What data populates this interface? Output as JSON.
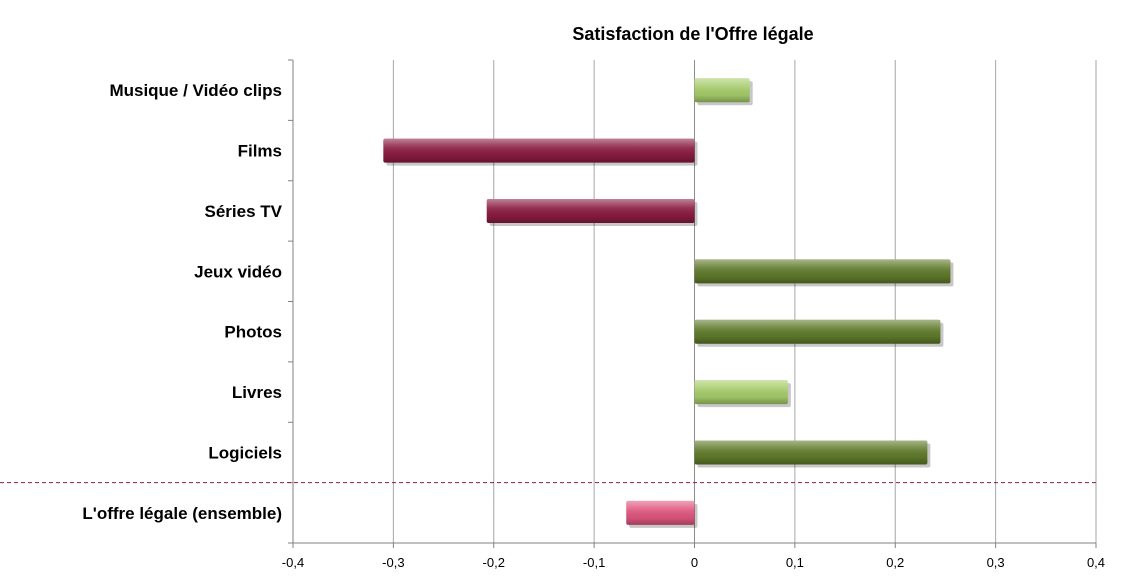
{
  "chart_data": {
    "type": "bar",
    "orientation": "horizontal",
    "title": "Satisfaction de l'Offre légale",
    "xlabel": "",
    "ylabel": "",
    "xlim": [
      -0.4,
      0.4
    ],
    "grid": true,
    "categories": [
      "Musique / Vidéo clips",
      "Films",
      "Séries TV",
      "Jeux vidéo",
      "Photos",
      "Livres",
      "Logiciels",
      "L'offre légale (ensemble)"
    ],
    "values": [
      0.055,
      -0.31,
      -0.207,
      0.255,
      0.245,
      0.093,
      0.232,
      -0.068
    ],
    "bar_colors": [
      "#a6cc6a",
      "#8b1c42",
      "#8b1c42",
      "#5f7a2a",
      "#5f7a2a",
      "#a6cc6a",
      "#5f7a2a",
      "#e0567f"
    ],
    "x_ticks": [
      -0.4,
      -0.3,
      -0.2,
      -0.1,
      0,
      0.1,
      0.2,
      0.3,
      0.4
    ],
    "x_tick_labels": [
      "-0,4",
      "-0,3",
      "-0,2",
      "-0,1",
      "0",
      "0,1",
      "0,2",
      "0,3",
      "0,4"
    ],
    "separator": {
      "after_category": "Logiciels",
      "color": "#8b1c42",
      "style": "dashed"
    }
  }
}
